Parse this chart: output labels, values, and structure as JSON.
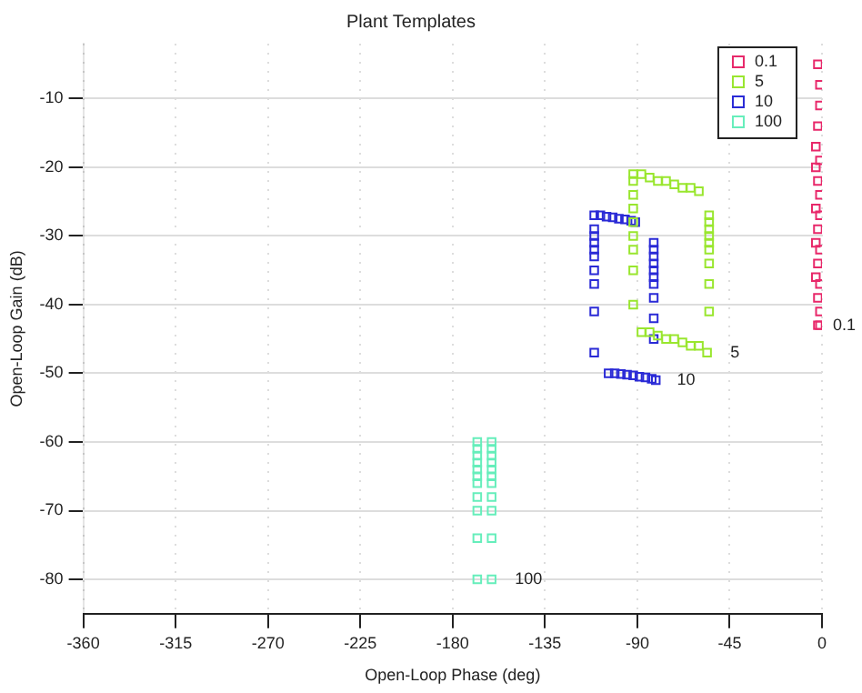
{
  "chart_data": {
    "type": "scatter",
    "title": "Plant Templates",
    "xlabel": "Open-Loop Phase (deg)",
    "ylabel": "Open-Loop Gain (dB)",
    "xlim": [
      -360,
      0
    ],
    "xticks": [
      -360,
      -315,
      -270,
      -225,
      -180,
      -135,
      -90,
      -45,
      0
    ],
    "ylim": [
      -85,
      -2
    ],
    "yticks": [
      -80,
      -70,
      -60,
      -50,
      -40,
      -30,
      -20,
      -10
    ],
    "grid": true,
    "legend": "top right",
    "marker": "square",
    "series": [
      {
        "name": "0.1",
        "color": "#e8286a",
        "x": [
          -2,
          -1,
          -1,
          -2,
          -3,
          -1,
          -3,
          -2,
          -1,
          -3,
          -1,
          -2,
          -3,
          -1,
          -2,
          -3,
          -1,
          -2,
          -1,
          -2,
          -1
        ],
        "values": [
          -5,
          -8,
          -11,
          -14,
          -17,
          -19,
          -20,
          -22,
          -24,
          -26,
          -27,
          -29,
          -31,
          -32,
          -34,
          -36,
          -37,
          -39,
          -41,
          -43,
          -43
        ]
      },
      {
        "name": "5",
        "color": "#99e62e",
        "x": [
          -92,
          -88,
          -84,
          -80,
          -76,
          -72,
          -68,
          -64,
          -60,
          -92,
          -92,
          -92,
          -92,
          -92,
          -92,
          -92,
          -92,
          -55,
          -55,
          -55,
          -55,
          -55,
          -55,
          -55,
          -55,
          -55,
          -88,
          -84,
          -80,
          -76,
          -72,
          -68,
          -64,
          -60,
          -56
        ],
        "values": [
          -21,
          -21,
          -21.5,
          -22,
          -22,
          -22.5,
          -23,
          -23,
          -23.5,
          -22,
          -24,
          -26,
          -28,
          -30,
          -32,
          -35,
          -40,
          -27,
          -28,
          -29,
          -30,
          -31,
          -32,
          -34,
          -37,
          -41,
          -44,
          -44,
          -44.5,
          -45,
          -45,
          -45.5,
          -46,
          -46,
          -47
        ]
      },
      {
        "name": "10",
        "color": "#2a2ad6",
        "x": [
          -111,
          -108,
          -105,
          -102,
          -99,
          -96,
          -93,
          -91,
          -111,
          -111,
          -111,
          -111,
          -111,
          -111,
          -111,
          -111,
          -111,
          -82,
          -82,
          -82,
          -82,
          -82,
          -82,
          -82,
          -82,
          -82,
          -82,
          -104,
          -101,
          -98,
          -95,
          -92,
          -89,
          -86,
          -83,
          -81
        ],
        "values": [
          -27,
          -27,
          -27.2,
          -27.3,
          -27.5,
          -27.6,
          -27.8,
          -28,
          -29,
          -30,
          -31,
          -32,
          -33,
          -35,
          -37,
          -41,
          -47,
          -31,
          -32,
          -33,
          -34,
          -35,
          -36,
          -37,
          -39,
          -42,
          -45,
          -50,
          -50,
          -50.1,
          -50.2,
          -50.3,
          -50.5,
          -50.6,
          -50.8,
          -51
        ]
      },
      {
        "name": "100",
        "color": "#66eebb",
        "x": [
          -168,
          -168,
          -168,
          -168,
          -168,
          -168,
          -168,
          -168,
          -168,
          -168,
          -168,
          -161,
          -161,
          -161,
          -161,
          -161,
          -161,
          -161,
          -161,
          -161,
          -161,
          -161
        ],
        "values": [
          -60,
          -61,
          -62,
          -63,
          -64,
          -65,
          -66,
          -68,
          -70,
          -74,
          -80,
          -60,
          -61,
          -62,
          -63,
          -64,
          -65,
          -66,
          -68,
          -70,
          -74,
          -80
        ]
      }
    ],
    "annotations": [
      {
        "text": "0.1",
        "x": 0,
        "y": -43
      },
      {
        "text": "5",
        "x": -50,
        "y": -47
      },
      {
        "text": "10",
        "x": -76,
        "y": -51
      },
      {
        "text": "100",
        "x": -155,
        "y": -80
      }
    ]
  }
}
